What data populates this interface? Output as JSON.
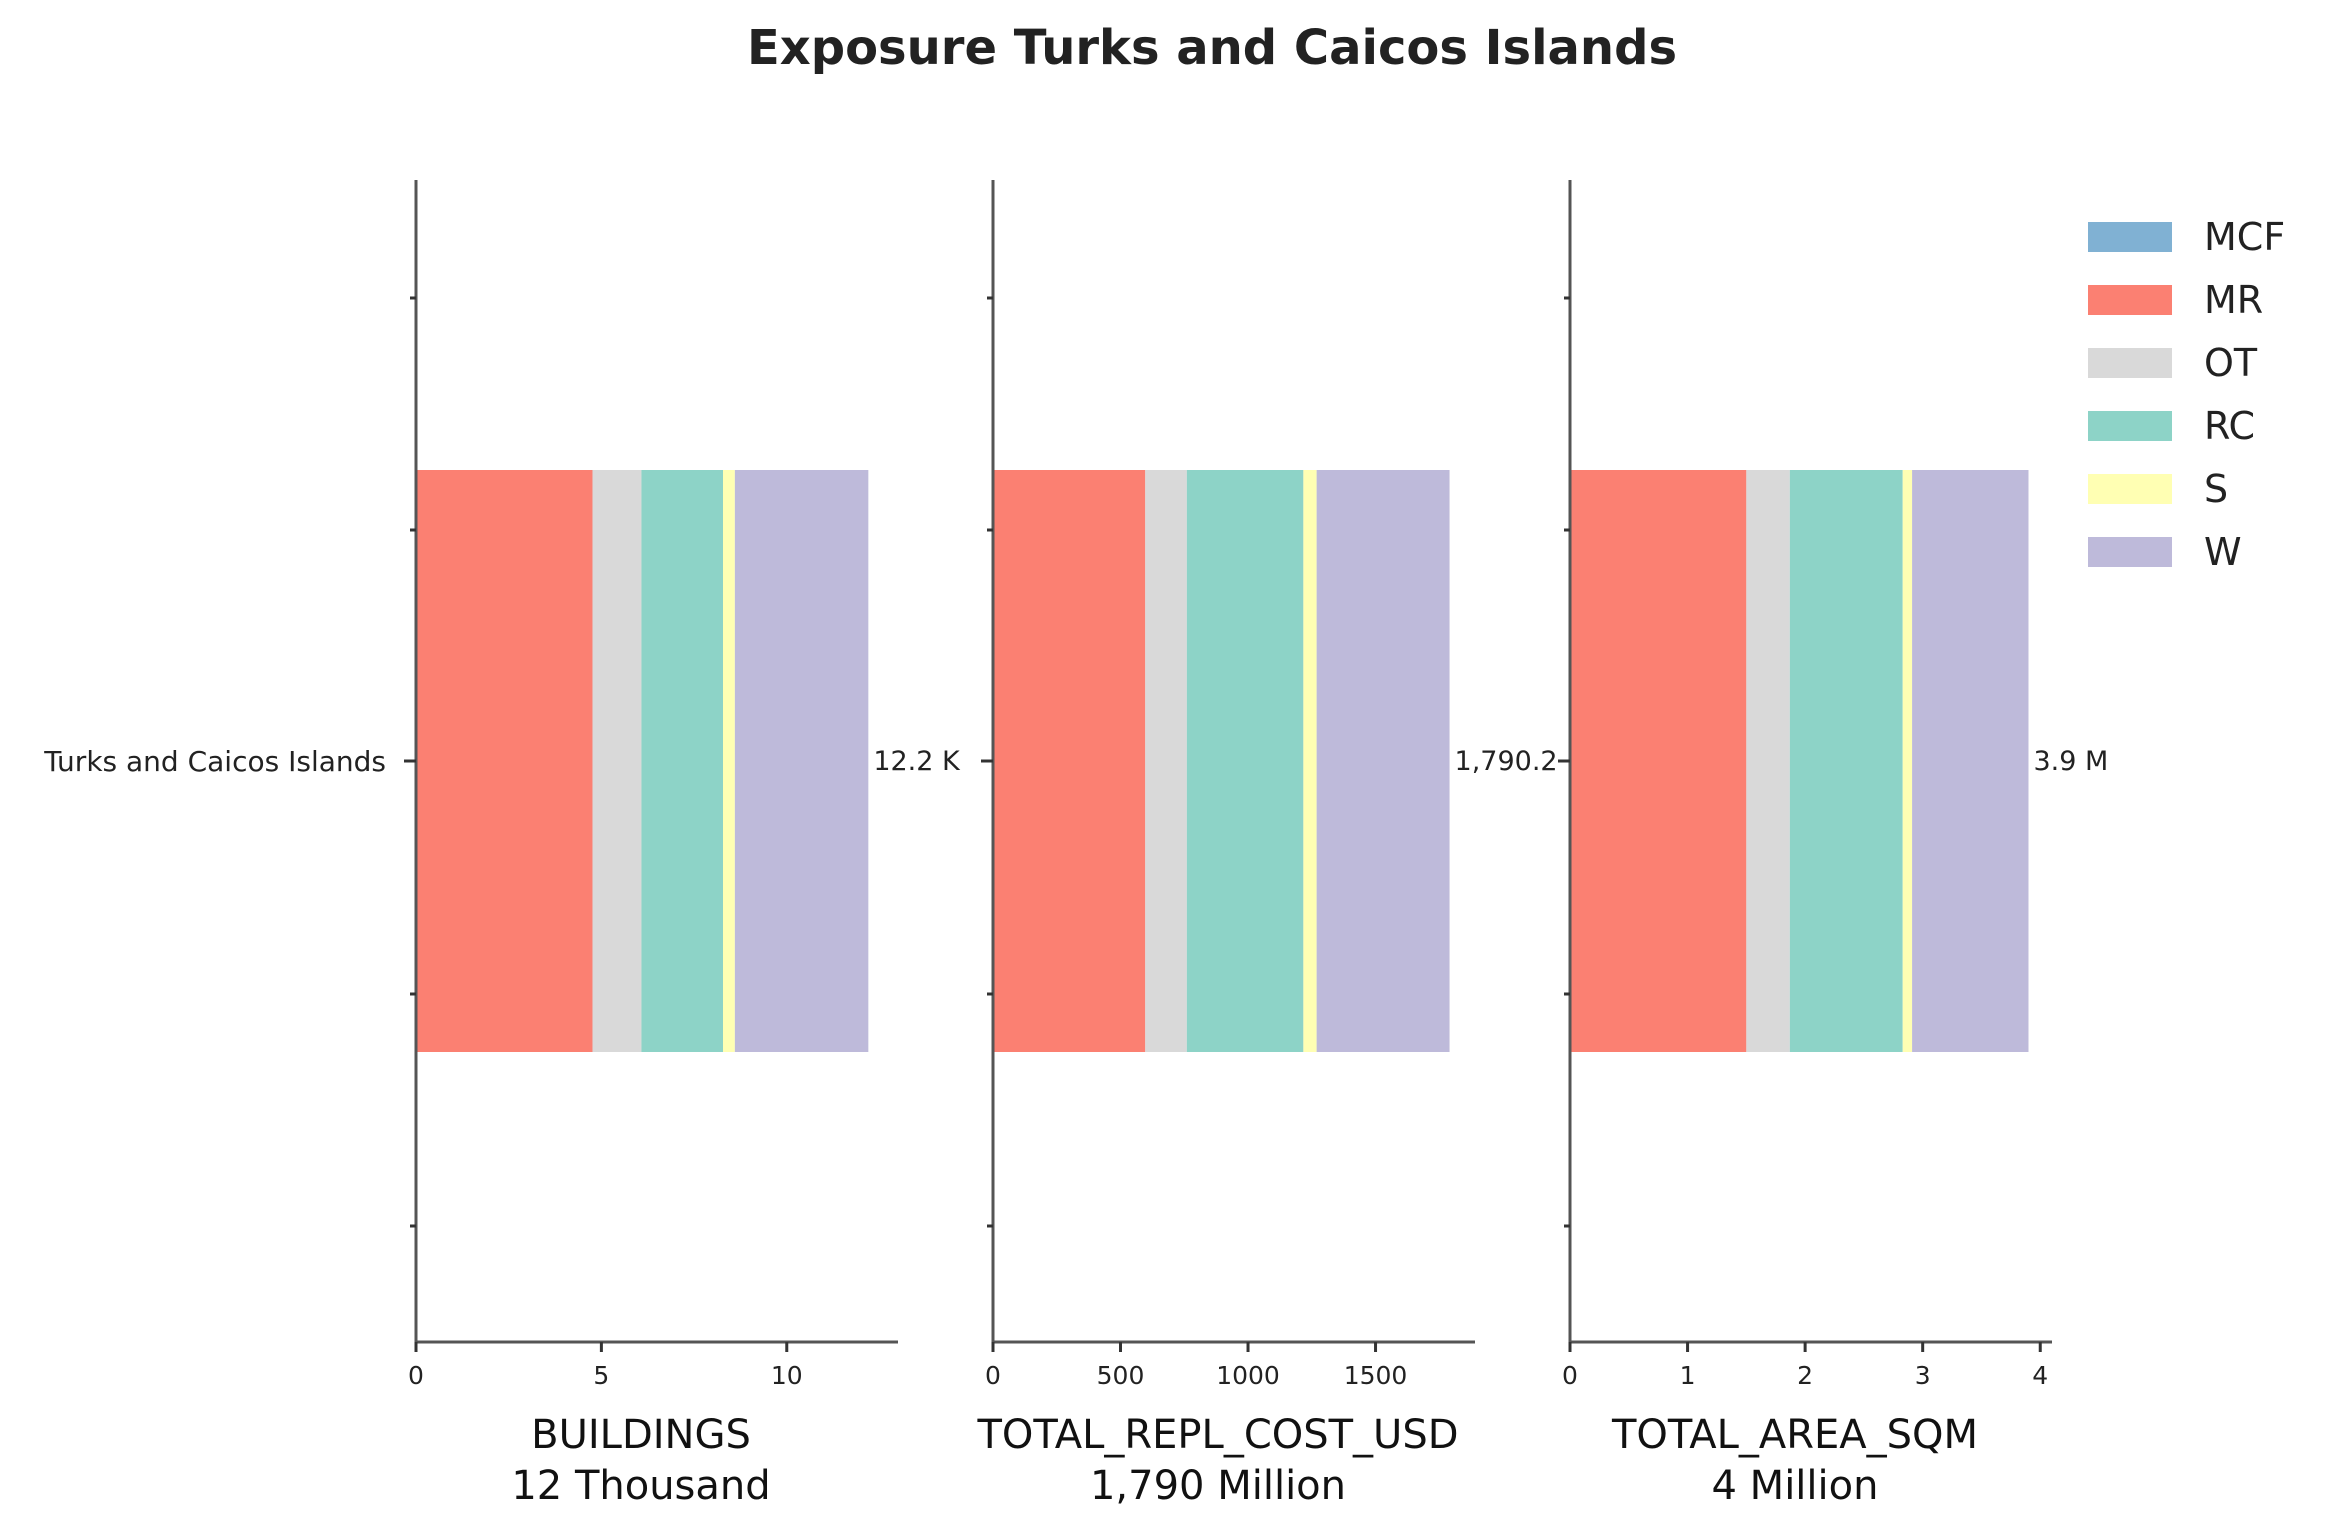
{
  "chart_data": {
    "type": "bar",
    "orientation": "horizontal",
    "stacked": true,
    "title": "Exposure Turks and Caicos Islands",
    "categories": [
      "Turks and Caicos Islands"
    ],
    "legend": {
      "placement": "top-right",
      "entries": [
        {
          "name": "MCF",
          "color": "#80b1d3"
        },
        {
          "name": "MR",
          "color": "#fb8072"
        },
        {
          "name": "OT",
          "color": "#d9d9d9"
        },
        {
          "name": "RC",
          "color": "#8dd3c7"
        },
        {
          "name": "S",
          "color": "#ffffb3"
        },
        {
          "name": "W",
          "color": "#bebada"
        }
      ]
    },
    "panels": [
      {
        "xlabel": "BUILDINGS",
        "subtitle": "12 Thousand",
        "total_label": "12.2 K",
        "xlim": [
          0,
          13
        ],
        "xticks": [
          0,
          5,
          10
        ],
        "xtick_labels": [
          "0",
          "5",
          "10"
        ],
        "series": [
          {
            "name": "MCF",
            "values": [
              0.0
            ]
          },
          {
            "name": "MR",
            "values": [
              4.76
            ]
          },
          {
            "name": "OT",
            "values": [
              1.32
            ]
          },
          {
            "name": "RC",
            "values": [
              2.2
            ]
          },
          {
            "name": "S",
            "values": [
              0.32
            ]
          },
          {
            "name": "W",
            "values": [
              3.6
            ]
          }
        ]
      },
      {
        "xlabel": "TOTAL_REPL_COST_USD",
        "subtitle": "1,790 Million",
        "total_label": "1,790.2",
        "xlim": [
          0,
          1890
        ],
        "xticks": [
          0,
          500,
          1000,
          1500
        ],
        "xtick_labels": [
          "0",
          "500",
          "1000",
          "1500"
        ],
        "series": [
          {
            "name": "MCF",
            "values": [
              0.0
            ]
          },
          {
            "name": "MR",
            "values": [
              597
            ]
          },
          {
            "name": "OT",
            "values": [
              163
            ]
          },
          {
            "name": "RC",
            "values": [
              457
            ]
          },
          {
            "name": "S",
            "values": [
              52
            ]
          },
          {
            "name": "W",
            "values": [
              521.2
            ]
          }
        ]
      },
      {
        "xlabel": "TOTAL_AREA_SQM",
        "subtitle": "4 Million",
        "total_label": "3.9 M",
        "xlim": [
          0,
          4.1
        ],
        "xticks": [
          0,
          1,
          2,
          3,
          4
        ],
        "xtick_labels": [
          "0",
          "1",
          "2",
          "3",
          "4"
        ],
        "series": [
          {
            "name": "MCF",
            "values": [
              0.0
            ]
          },
          {
            "name": "MR",
            "values": [
              1.5
            ]
          },
          {
            "name": "OT",
            "values": [
              0.37
            ]
          },
          {
            "name": "RC",
            "values": [
              0.96
            ]
          },
          {
            "name": "S",
            "values": [
              0.08
            ]
          },
          {
            "name": "W",
            "values": [
              0.99
            ]
          }
        ]
      }
    ]
  }
}
